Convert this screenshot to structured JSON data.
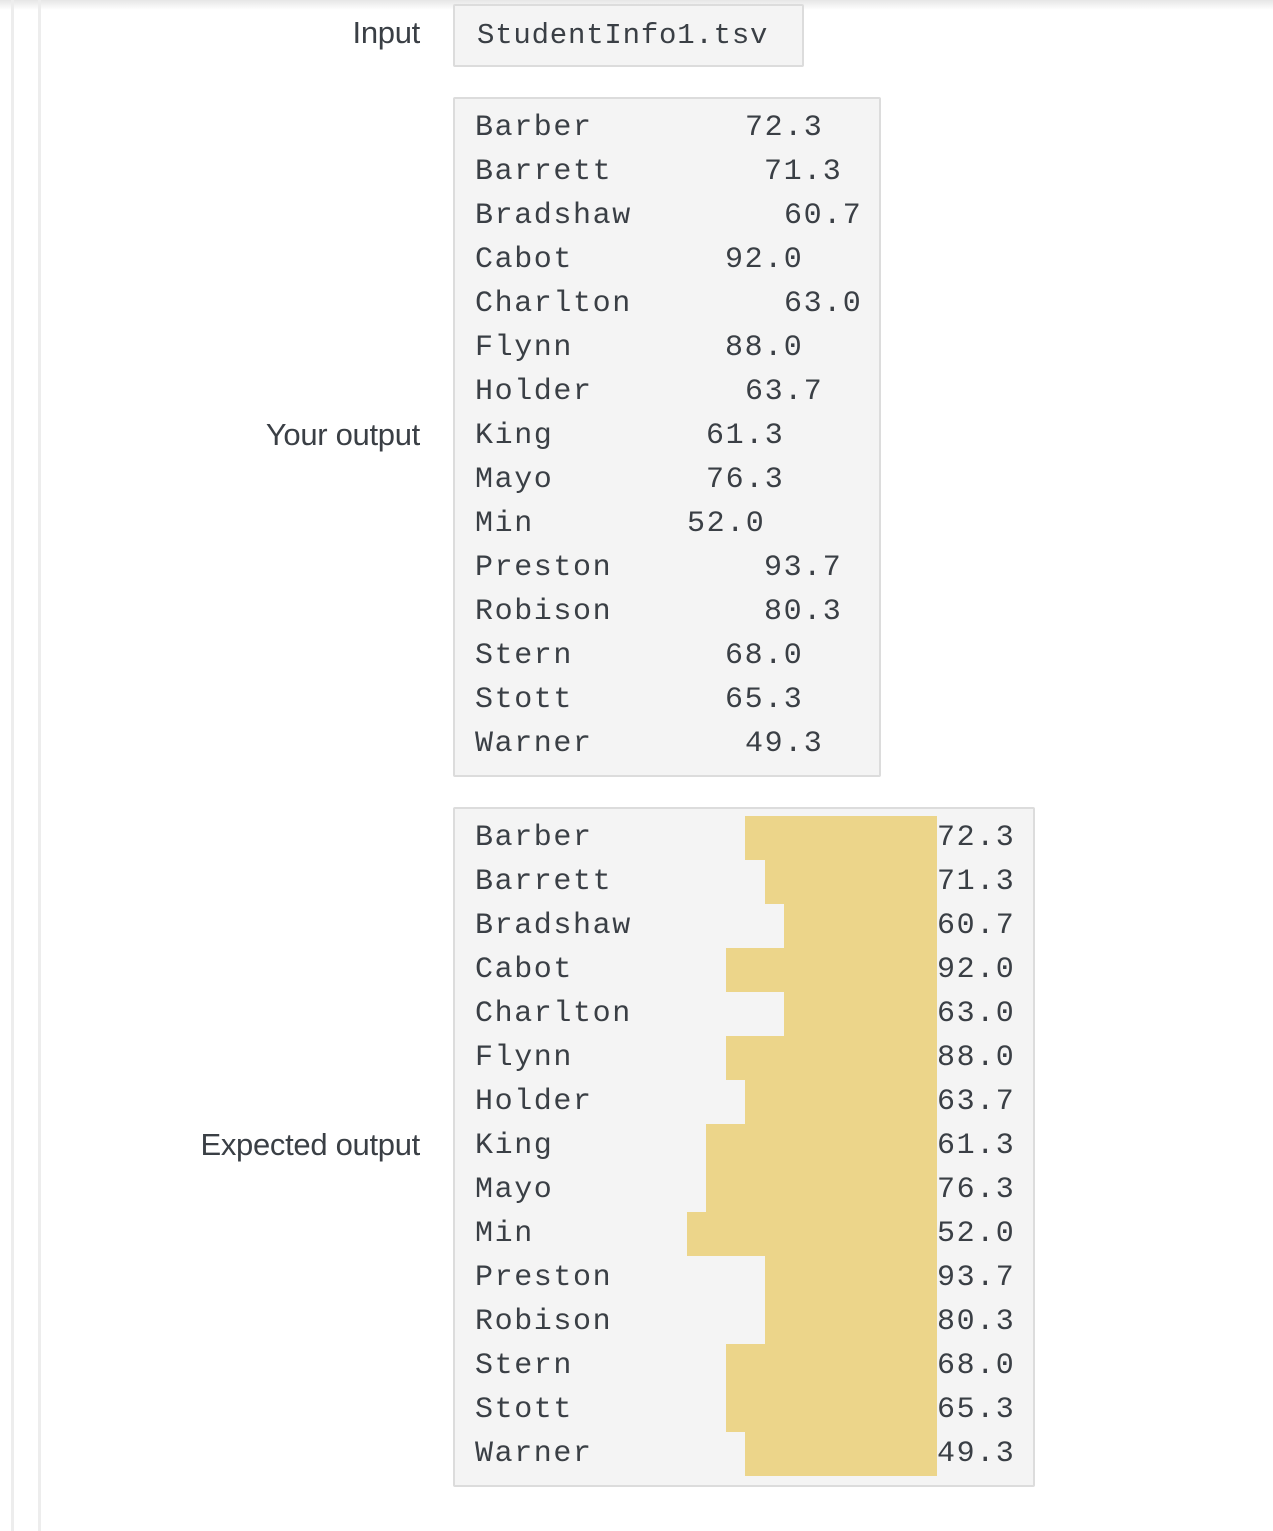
{
  "labels": {
    "input": "Input",
    "your_output": "Your output",
    "expected_output": "Expected output"
  },
  "input_file": "StudentInfo1.tsv",
  "your_output_rows": [
    {
      "name": "Barber",
      "gap": "\t\t",
      "value": "72.3"
    },
    {
      "name": "Barrett",
      "gap": "\t\t",
      "value": "71.3"
    },
    {
      "name": "Bradshaw",
      "gap": "\t\t",
      "value": "60.7"
    },
    {
      "name": "Cabot",
      "gap": "\t\t",
      "value": "92.0"
    },
    {
      "name": "Charlton",
      "gap": "\t\t",
      "value": "63.0"
    },
    {
      "name": "Flynn",
      "gap": "\t\t",
      "value": "88.0"
    },
    {
      "name": "Holder",
      "gap": "\t\t",
      "value": "63.7"
    },
    {
      "name": "King",
      "gap": "\t\t",
      "value": "61.3"
    },
    {
      "name": "Mayo",
      "gap": "\t\t",
      "value": "76.3"
    },
    {
      "name": "Min",
      "gap": "\t\t",
      "value": "52.0"
    },
    {
      "name": "Preston",
      "gap": "\t\t",
      "value": "93.7"
    },
    {
      "name": "Robison",
      "gap": "\t\t",
      "value": "80.3"
    },
    {
      "name": "Stern",
      "gap": "\t\t",
      "value": "68.0"
    },
    {
      "name": "Stott",
      "gap": "\t\t",
      "value": "65.3"
    },
    {
      "name": "Warner",
      "gap": "\t\t",
      "value": "49.3"
    }
  ],
  "expected_output_rows": [
    {
      "name": "Barber",
      "value": "72.3"
    },
    {
      "name": "Barrett",
      "value": "71.3"
    },
    {
      "name": "Bradshaw",
      "value": "60.7"
    },
    {
      "name": "Cabot",
      "value": "92.0"
    },
    {
      "name": "Charlton",
      "value": "63.0"
    },
    {
      "name": "Flynn",
      "value": "88.0"
    },
    {
      "name": "Holder",
      "value": "63.7"
    },
    {
      "name": "King",
      "value": "61.3"
    },
    {
      "name": "Mayo",
      "value": "76.3"
    },
    {
      "name": "Min",
      "value": "52.0"
    },
    {
      "name": "Preston",
      "value": "93.7"
    },
    {
      "name": "Robison",
      "value": "80.3"
    },
    {
      "name": "Stern",
      "value": "68.0"
    },
    {
      "name": "Stott",
      "value": "65.3"
    },
    {
      "name": "Warner",
      "value": "49.3"
    }
  ],
  "colors": {
    "diff_highlight": "#ecd58a",
    "box_background": "#f4f4f4",
    "text": "#3a3f45"
  }
}
